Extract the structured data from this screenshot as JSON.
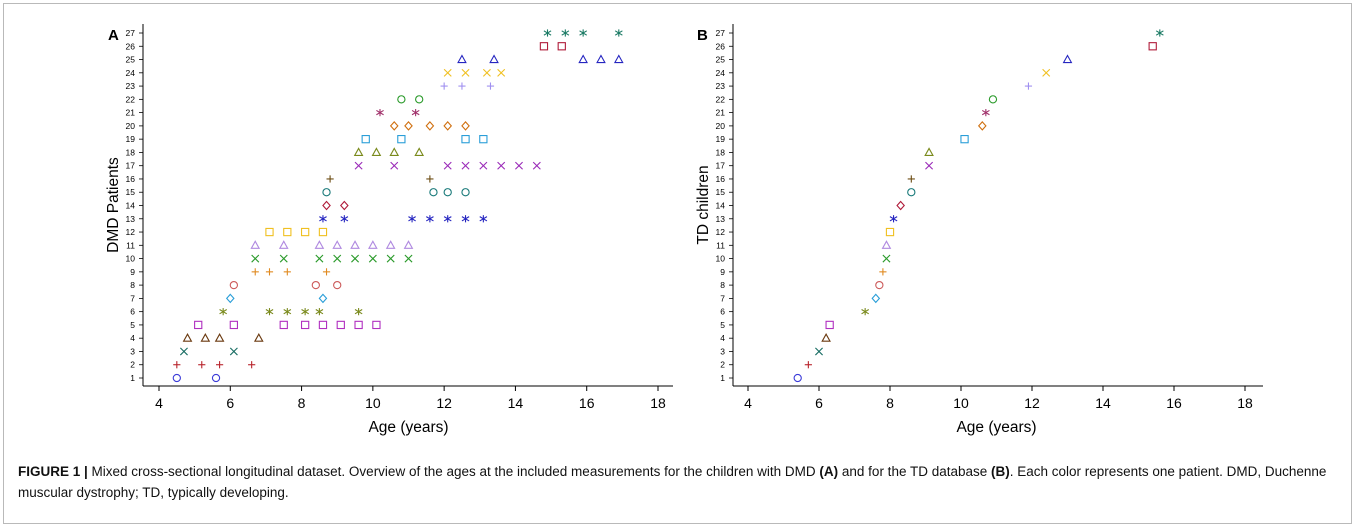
{
  "figure": {
    "caption_lead": "FIGURE 1 |",
    "caption_part1": " Mixed cross-sectional longitudinal dataset. Overview of the ages at the included measurements for the children with DMD ",
    "caption_ref_a": "(A)",
    "caption_part2": " and for the TD database ",
    "caption_ref_b": "(B)",
    "caption_part3": ". Each color represents one patient. DMD, Duchenne muscular dystrophy; TD, typically developing."
  },
  "colors": {
    "1": "#3b3bd8",
    "2": "#b8232b",
    "3": "#1a6e64",
    "4": "#6b3a10",
    "5": "#b02fc0",
    "6": "#7a8a1c",
    "7": "#2a9ed8",
    "8": "#cc5a5a",
    "9": "#e08a20",
    "10": "#2a9a2a",
    "11": "#b08ae0",
    "12": "#f0c020",
    "13": "#2525c0",
    "14": "#b01c3a",
    "15": "#1a7a7a",
    "16": "#6a4a10",
    "17": "#9a2ab8",
    "18": "#7a8a1c",
    "19": "#2a9ed8",
    "20": "#d07010",
    "21": "#a0306a",
    "22": "#2a9a2a",
    "23": "#a090f0",
    "24": "#f0c020",
    "25": "#2525c0",
    "26": "#b01c3a",
    "27": "#1a7a64"
  },
  "markers": {
    "1": "circle",
    "2": "plus",
    "3": "x",
    "4": "triangle",
    "5": "square",
    "6": "asterisk",
    "7": "diamond",
    "8": "circle",
    "9": "plus",
    "10": "x",
    "11": "triangle",
    "12": "square",
    "13": "asterisk",
    "14": "diamond",
    "15": "circle",
    "16": "plus",
    "17": "x",
    "18": "triangle",
    "19": "square",
    "20": "diamond",
    "21": "asterisk",
    "22": "circle",
    "23": "plus",
    "24": "x",
    "25": "triangle",
    "26": "square",
    "27": "asterisk"
  },
  "chart_data": [
    {
      "type": "scatter",
      "panel_label": "A",
      "xlabel": "Age (years)",
      "ylabel": "DMD Patients",
      "xlim": [
        4,
        18
      ],
      "ylim": [
        1,
        27
      ],
      "x_ticks": [
        "4",
        "6",
        "8",
        "10",
        "12",
        "14",
        "16",
        "18"
      ],
      "y_ticks": [
        "1",
        "2",
        "3",
        "4",
        "5",
        "6",
        "7",
        "8",
        "9",
        "10",
        "11",
        "12",
        "13",
        "14",
        "15",
        "16",
        "17",
        "18",
        "19",
        "20",
        "21",
        "22",
        "23",
        "24",
        "25",
        "26",
        "27"
      ],
      "grid": false,
      "points": [
        {
          "patient": 1,
          "ages": [
            4.5,
            5.6
          ]
        },
        {
          "patient": 2,
          "ages": [
            4.5,
            5.2,
            5.7,
            6.6
          ]
        },
        {
          "patient": 3,
          "ages": [
            4.7,
            6.1
          ]
        },
        {
          "patient": 4,
          "ages": [
            4.8,
            5.3,
            5.7,
            6.8
          ]
        },
        {
          "patient": 5,
          "ages": [
            5.1,
            6.1,
            7.5,
            8.1,
            8.6,
            9.1,
            9.6,
            10.1
          ]
        },
        {
          "patient": 6,
          "ages": [
            5.8,
            7.1,
            7.6,
            8.1,
            8.5,
            9.6
          ]
        },
        {
          "patient": 7,
          "ages": [
            6.0,
            8.6
          ]
        },
        {
          "patient": 8,
          "ages": [
            6.1,
            8.4,
            9.0
          ]
        },
        {
          "patient": 9,
          "ages": [
            6.7,
            7.1,
            7.6,
            8.7
          ]
        },
        {
          "patient": 10,
          "ages": [
            6.7,
            7.5,
            8.5,
            9.0,
            9.5,
            10.0,
            10.5,
            11.0
          ]
        },
        {
          "patient": 11,
          "ages": [
            6.7,
            7.5,
            8.5,
            9.0,
            9.5,
            10.0,
            10.5,
            11.0
          ]
        },
        {
          "patient": 12,
          "ages": [
            7.1,
            7.6,
            8.1,
            8.6
          ]
        },
        {
          "patient": 13,
          "ages": [
            8.6,
            9.2,
            11.1,
            11.6,
            12.1,
            12.6,
            13.1
          ]
        },
        {
          "patient": 14,
          "ages": [
            8.7,
            9.2
          ]
        },
        {
          "patient": 15,
          "ages": [
            8.7,
            11.7,
            12.1,
            12.6
          ]
        },
        {
          "patient": 16,
          "ages": [
            8.8,
            11.6
          ]
        },
        {
          "patient": 17,
          "ages": [
            9.6,
            10.6,
            12.1,
            12.6,
            13.1,
            13.6,
            14.1,
            14.6
          ]
        },
        {
          "patient": 18,
          "ages": [
            9.6,
            10.1,
            10.6,
            11.3
          ]
        },
        {
          "patient": 19,
          "ages": [
            9.8,
            10.8,
            12.6,
            13.1
          ]
        },
        {
          "patient": 20,
          "ages": [
            10.6,
            11.0,
            11.6,
            12.1,
            12.6
          ]
        },
        {
          "patient": 21,
          "ages": [
            10.2,
            11.2
          ]
        },
        {
          "patient": 22,
          "ages": [
            10.8,
            11.3
          ]
        },
        {
          "patient": 23,
          "ages": [
            12.0,
            12.5,
            13.3
          ]
        },
        {
          "patient": 24,
          "ages": [
            12.1,
            12.6,
            13.2,
            13.6
          ]
        },
        {
          "patient": 25,
          "ages": [
            12.5,
            13.4,
            15.9,
            16.4,
            16.9
          ]
        },
        {
          "patient": 26,
          "ages": [
            14.8,
            15.3
          ]
        },
        {
          "patient": 27,
          "ages": [
            14.9,
            15.4,
            15.9,
            16.9
          ]
        }
      ]
    },
    {
      "type": "scatter",
      "panel_label": "B",
      "xlabel": "Age (years)",
      "ylabel": "TD children",
      "xlim": [
        4,
        18
      ],
      "ylim": [
        1,
        27
      ],
      "x_ticks": [
        "4",
        "6",
        "8",
        "10",
        "12",
        "14",
        "16",
        "18"
      ],
      "y_ticks": [
        "1",
        "2",
        "3",
        "4",
        "5",
        "6",
        "7",
        "8",
        "9",
        "10",
        "11",
        "12",
        "13",
        "14",
        "15",
        "16",
        "17",
        "18",
        "19",
        "20",
        "21",
        "22",
        "23",
        "24",
        "25",
        "26",
        "27"
      ],
      "grid": false,
      "points": [
        {
          "patient": 1,
          "ages": [
            5.4
          ]
        },
        {
          "patient": 2,
          "ages": [
            5.7
          ]
        },
        {
          "patient": 3,
          "ages": [
            6.0
          ]
        },
        {
          "patient": 4,
          "ages": [
            6.2
          ]
        },
        {
          "patient": 5,
          "ages": [
            6.3
          ]
        },
        {
          "patient": 6,
          "ages": [
            7.3
          ]
        },
        {
          "patient": 7,
          "ages": [
            7.6
          ]
        },
        {
          "patient": 8,
          "ages": [
            7.7
          ]
        },
        {
          "patient": 9,
          "ages": [
            7.8
          ]
        },
        {
          "patient": 10,
          "ages": [
            7.9
          ]
        },
        {
          "patient": 11,
          "ages": [
            7.9
          ]
        },
        {
          "patient": 12,
          "ages": [
            8.0
          ]
        },
        {
          "patient": 13,
          "ages": [
            8.1
          ]
        },
        {
          "patient": 14,
          "ages": [
            8.3
          ]
        },
        {
          "patient": 15,
          "ages": [
            8.6
          ]
        },
        {
          "patient": 16,
          "ages": [
            8.6
          ]
        },
        {
          "patient": 17,
          "ages": [
            9.1
          ]
        },
        {
          "patient": 18,
          "ages": [
            9.1
          ]
        },
        {
          "patient": 19,
          "ages": [
            10.1
          ]
        },
        {
          "patient": 20,
          "ages": [
            10.6
          ]
        },
        {
          "patient": 21,
          "ages": [
            10.7
          ]
        },
        {
          "patient": 22,
          "ages": [
            10.9
          ]
        },
        {
          "patient": 23,
          "ages": [
            11.9
          ]
        },
        {
          "patient": 24,
          "ages": [
            12.4
          ]
        },
        {
          "patient": 25,
          "ages": [
            13.0
          ]
        },
        {
          "patient": 26,
          "ages": [
            15.4
          ]
        },
        {
          "patient": 27,
          "ages": [
            15.6
          ]
        }
      ]
    }
  ]
}
